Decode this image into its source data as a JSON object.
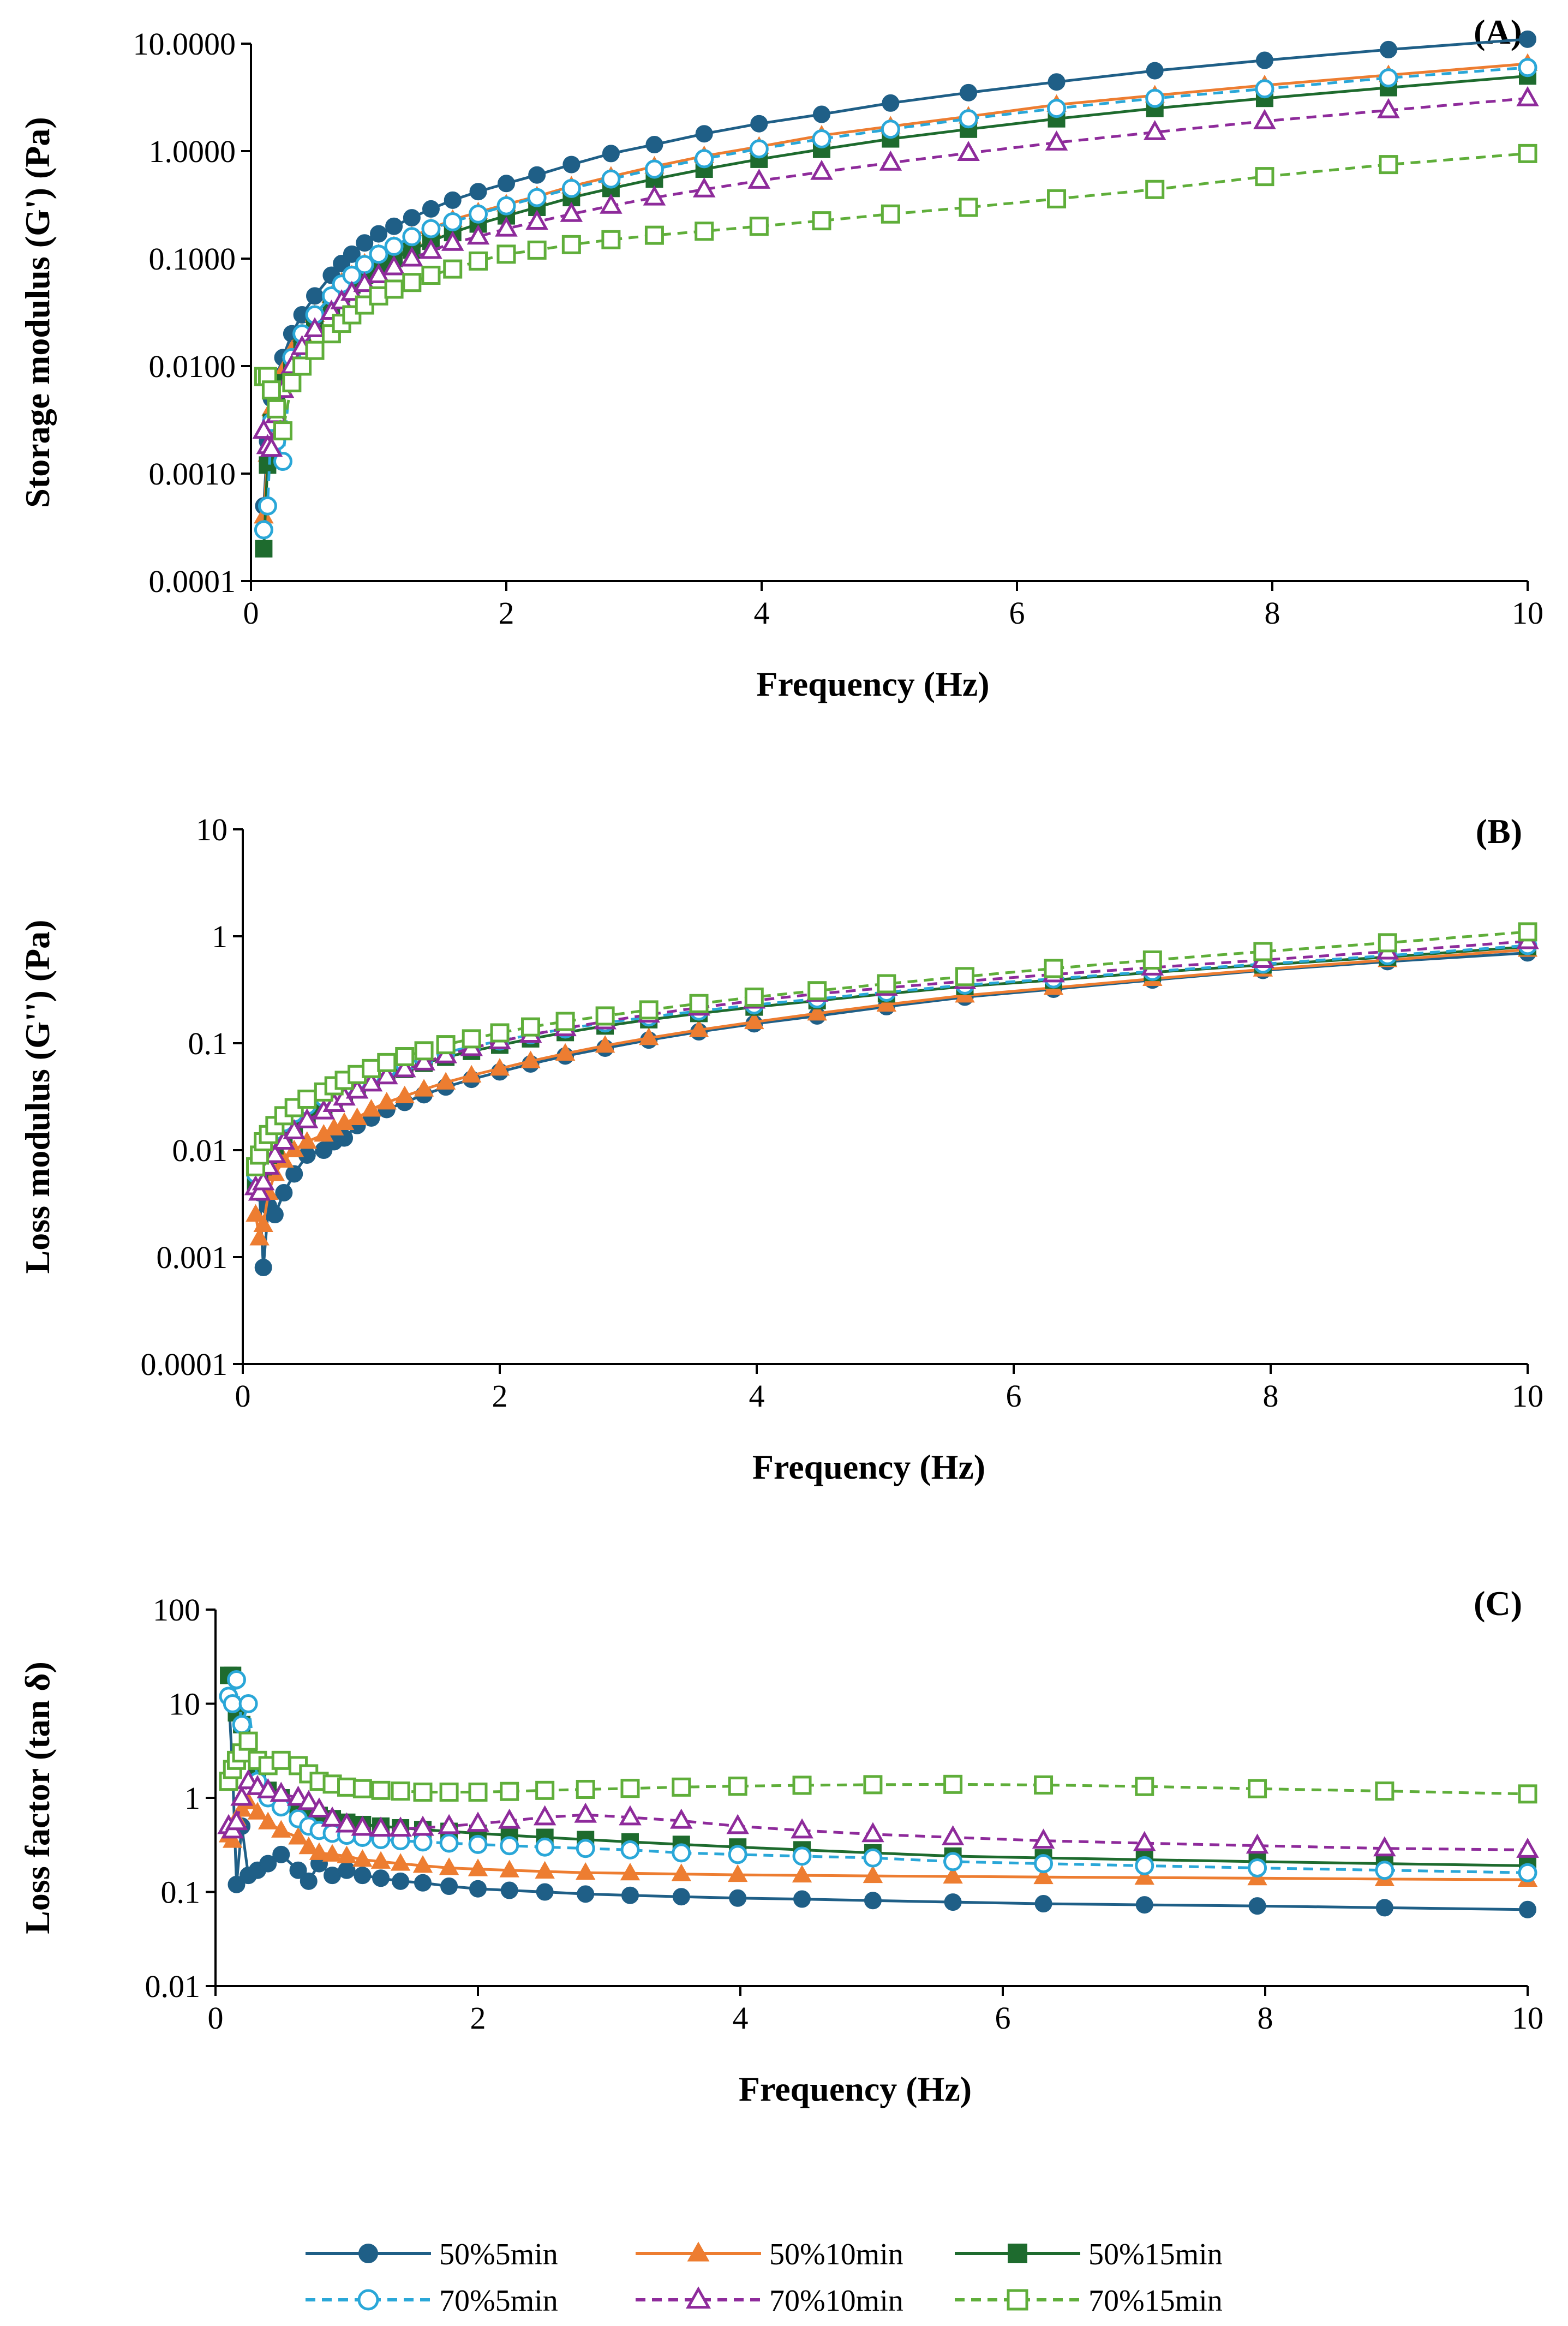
{
  "series_styles": [
    {
      "name": "50%5min",
      "color": "#1f5f87",
      "marker": "circle",
      "filled": true,
      "dashed": false
    },
    {
      "name": "50%10min",
      "color": "#ed7d31",
      "marker": "triangle",
      "filled": true,
      "dashed": false
    },
    {
      "name": "50%15min",
      "color": "#1e6b2e",
      "marker": "square",
      "filled": true,
      "dashed": false
    },
    {
      "name": "70%5min",
      "color": "#2aa7d8",
      "marker": "circle",
      "filled": false,
      "dashed": true
    },
    {
      "name": "70%10min",
      "color": "#8e2b9b",
      "marker": "triangle",
      "filled": false,
      "dashed": true
    },
    {
      "name": "70%15min",
      "color": "#5fae3a",
      "marker": "square",
      "filled": false,
      "dashed": true
    }
  ],
  "legend": {
    "entries": [
      "50%5min",
      "50%10min",
      "50%15min",
      "70%5min",
      "70%10min",
      "70%15min"
    ]
  },
  "chart_data": [
    {
      "type": "line",
      "panel": "(A)",
      "xlabel": "Frequency (Hz)",
      "ylabel": "Storage modulus (G') (Pa)",
      "yscale": "log",
      "xlim": [
        0,
        10
      ],
      "ylim": [
        0.0001,
        10
      ],
      "x_ticks": [
        "0",
        "2",
        "4",
        "6",
        "8",
        "10"
      ],
      "y_ticks": [
        "0.0001",
        "0.0010",
        "0.0100",
        "0.1000",
        "1.0000",
        "10.0000"
      ],
      "x": [
        0.1,
        0.13,
        0.16,
        0.2,
        0.25,
        0.32,
        0.4,
        0.5,
        0.63,
        0.71,
        0.79,
        0.89,
        1.0,
        1.12,
        1.26,
        1.41,
        1.58,
        1.78,
        2.0,
        2.24,
        2.51,
        2.82,
        3.16,
        3.55,
        3.98,
        4.47,
        5.01,
        5.62,
        6.31,
        7.08,
        7.94,
        8.91,
        10.0
      ],
      "series": [
        {
          "name": "50%5min",
          "values": [
            0.0005,
            0.002,
            0.005,
            0.008,
            0.012,
            0.02,
            0.03,
            0.045,
            0.07,
            0.09,
            0.11,
            0.14,
            0.17,
            0.2,
            0.24,
            0.29,
            0.35,
            0.42,
            0.5,
            0.6,
            0.75,
            0.95,
            1.15,
            1.45,
            1.8,
            2.2,
            2.8,
            3.5,
            4.4,
            5.6,
            7.0,
            8.8,
            11.0
          ]
        },
        {
          "name": "50%10min",
          "values": [
            0.0004,
            0.0015,
            0.004,
            0.006,
            0.009,
            0.014,
            0.02,
            0.03,
            0.045,
            0.06,
            0.07,
            0.09,
            0.11,
            0.13,
            0.16,
            0.19,
            0.23,
            0.27,
            0.32,
            0.38,
            0.47,
            0.58,
            0.72,
            0.9,
            1.1,
            1.4,
            1.7,
            2.1,
            2.7,
            3.3,
            4.1,
            5.1,
            6.5
          ]
        },
        {
          "name": "50%15min",
          "values": [
            0.0002,
            0.0012,
            0.003,
            0.005,
            0.007,
            0.011,
            0.017,
            0.025,
            0.037,
            0.047,
            0.057,
            0.07,
            0.085,
            0.1,
            0.12,
            0.145,
            0.175,
            0.21,
            0.25,
            0.3,
            0.37,
            0.45,
            0.55,
            0.68,
            0.84,
            1.04,
            1.3,
            1.6,
            2.0,
            2.5,
            3.1,
            3.9,
            5.0
          ]
        },
        {
          "name": "70%5min",
          "values": [
            0.0003,
            0.0005,
            0.003,
            0.002,
            0.0013,
            0.012,
            0.02,
            0.03,
            0.045,
            0.058,
            0.07,
            0.088,
            0.11,
            0.13,
            0.16,
            0.19,
            0.22,
            0.26,
            0.31,
            0.37,
            0.45,
            0.55,
            0.68,
            0.85,
            1.05,
            1.3,
            1.6,
            2.0,
            2.5,
            3.1,
            3.8,
            4.8,
            6.0
          ]
        },
        {
          "name": "70%10min",
          "values": [
            0.0025,
            0.0018,
            0.0017,
            0.0035,
            0.006,
            0.01,
            0.015,
            0.022,
            0.032,
            0.04,
            0.048,
            0.058,
            0.07,
            0.083,
            0.1,
            0.118,
            0.14,
            0.16,
            0.19,
            0.22,
            0.26,
            0.31,
            0.37,
            0.44,
            0.53,
            0.64,
            0.78,
            0.96,
            1.2,
            1.5,
            1.9,
            2.4,
            3.1
          ]
        },
        {
          "name": "70%15min",
          "values": [
            0.008,
            0.008,
            0.006,
            0.004,
            0.0025,
            0.007,
            0.01,
            0.014,
            0.02,
            0.025,
            0.03,
            0.037,
            0.045,
            0.052,
            0.06,
            0.07,
            0.08,
            0.095,
            0.11,
            0.12,
            0.135,
            0.15,
            0.165,
            0.18,
            0.2,
            0.225,
            0.26,
            0.3,
            0.36,
            0.44,
            0.58,
            0.75,
            0.95
          ]
        }
      ]
    },
    {
      "type": "line",
      "panel": "(B)",
      "xlabel": "Frequency (Hz)",
      "ylabel": "Loss modulus (G'') (Pa)",
      "yscale": "log",
      "xlim": [
        0,
        10
      ],
      "ylim": [
        0.0001,
        10
      ],
      "x_ticks": [
        "0",
        "2",
        "4",
        "6",
        "8",
        "10"
      ],
      "y_ticks": [
        "0.0001",
        "0.001",
        "0.01",
        "0.1",
        "1",
        "10"
      ],
      "x": [
        0.1,
        0.13,
        0.16,
        0.2,
        0.25,
        0.32,
        0.4,
        0.5,
        0.63,
        0.71,
        0.79,
        0.89,
        1.0,
        1.12,
        1.26,
        1.41,
        1.58,
        1.78,
        2.0,
        2.24,
        2.51,
        2.82,
        3.16,
        3.55,
        3.98,
        4.47,
        5.01,
        5.62,
        6.31,
        7.08,
        7.94,
        8.91,
        10.0
      ],
      "series": [
        {
          "name": "50%5min",
          "values": [
            0.006,
            0.004,
            0.0008,
            0.003,
            0.0025,
            0.004,
            0.006,
            0.009,
            0.01,
            0.012,
            0.013,
            0.017,
            0.02,
            0.024,
            0.028,
            0.033,
            0.039,
            0.046,
            0.054,
            0.064,
            0.076,
            0.09,
            0.107,
            0.128,
            0.152,
            0.18,
            0.22,
            0.27,
            0.32,
            0.39,
            0.48,
            0.58,
            0.7
          ]
        },
        {
          "name": "50%10min",
          "values": [
            0.0025,
            0.0015,
            0.002,
            0.004,
            0.006,
            0.008,
            0.01,
            0.012,
            0.014,
            0.016,
            0.018,
            0.02,
            0.024,
            0.028,
            0.032,
            0.037,
            0.043,
            0.05,
            0.058,
            0.068,
            0.08,
            0.095,
            0.112,
            0.133,
            0.158,
            0.19,
            0.23,
            0.28,
            0.33,
            0.4,
            0.49,
            0.6,
            0.75
          ]
        },
        {
          "name": "50%15min",
          "values": [
            0.005,
            0.006,
            0.007,
            0.009,
            0.011,
            0.014,
            0.017,
            0.021,
            0.025,
            0.029,
            0.033,
            0.038,
            0.044,
            0.05,
            0.057,
            0.065,
            0.074,
            0.084,
            0.096,
            0.11,
            0.126,
            0.145,
            0.166,
            0.19,
            0.218,
            0.25,
            0.29,
            0.34,
            0.39,
            0.46,
            0.54,
            0.64,
            0.8
          ]
        },
        {
          "name": "70%5min",
          "values": [
            0.006,
            0.008,
            0.01,
            0.012,
            0.015,
            0.018,
            0.022,
            0.026,
            0.031,
            0.035,
            0.039,
            0.044,
            0.05,
            0.057,
            0.064,
            0.072,
            0.082,
            0.093,
            0.105,
            0.12,
            0.136,
            0.155,
            0.176,
            0.2,
            0.228,
            0.26,
            0.3,
            0.35,
            0.4,
            0.47,
            0.55,
            0.66,
            0.82
          ]
        },
        {
          "name": "70%10min",
          "values": [
            0.0045,
            0.004,
            0.005,
            0.007,
            0.009,
            0.012,
            0.015,
            0.019,
            0.023,
            0.027,
            0.031,
            0.036,
            0.042,
            0.049,
            0.057,
            0.066,
            0.077,
            0.09,
            0.104,
            0.12,
            0.138,
            0.16,
            0.185,
            0.215,
            0.25,
            0.29,
            0.33,
            0.38,
            0.44,
            0.51,
            0.6,
            0.72,
            0.9
          ]
        },
        {
          "name": "70%15min",
          "values": [
            0.007,
            0.009,
            0.012,
            0.014,
            0.017,
            0.021,
            0.025,
            0.03,
            0.035,
            0.04,
            0.045,
            0.051,
            0.058,
            0.066,
            0.075,
            0.085,
            0.097,
            0.11,
            0.125,
            0.142,
            0.16,
            0.18,
            0.205,
            0.235,
            0.27,
            0.31,
            0.36,
            0.42,
            0.5,
            0.6,
            0.72,
            0.87,
            1.1
          ]
        }
      ]
    },
    {
      "type": "line",
      "panel": "(C)",
      "xlabel": "Frequency (Hz)",
      "ylabel": "Loss factor (tan δ)",
      "yscale": "log",
      "xlim": [
        0,
        10
      ],
      "ylim": [
        0.01,
        100
      ],
      "x_ticks": [
        "0",
        "2",
        "4",
        "6",
        "8",
        "10"
      ],
      "y_ticks": [
        "0.01",
        "0.1",
        "1",
        "10",
        "100"
      ],
      "x": [
        0.1,
        0.13,
        0.16,
        0.2,
        0.25,
        0.32,
        0.4,
        0.5,
        0.63,
        0.71,
        0.79,
        0.89,
        1.0,
        1.12,
        1.26,
        1.41,
        1.58,
        1.78,
        2.0,
        2.24,
        2.51,
        2.82,
        3.16,
        3.55,
        3.98,
        4.47,
        5.01,
        5.62,
        6.31,
        7.08,
        7.94,
        8.91,
        10.0
      ],
      "series": [
        {
          "name": "50%5min",
          "values": [
            12,
            2.0,
            0.12,
            0.5,
            0.15,
            0.17,
            0.2,
            0.25,
            0.17,
            0.13,
            0.2,
            0.15,
            0.17,
            0.15,
            0.14,
            0.13,
            0.125,
            0.115,
            0.108,
            0.104,
            0.1,
            0.095,
            0.092,
            0.089,
            0.086,
            0.084,
            0.081,
            0.078,
            0.075,
            0.073,
            0.071,
            0.068,
            0.065
          ]
        },
        {
          "name": "50%10min",
          "values": [
            0.4,
            0.35,
            0.6,
            0.75,
            0.9,
            0.7,
            0.55,
            0.45,
            0.38,
            0.3,
            0.26,
            0.25,
            0.24,
            0.22,
            0.21,
            0.2,
            0.19,
            0.18,
            0.175,
            0.17,
            0.165,
            0.16,
            0.158,
            0.155,
            0.152,
            0.15,
            0.148,
            0.146,
            0.144,
            0.142,
            0.14,
            0.137,
            0.135
          ]
        },
        {
          "name": "50%15min",
          "values": [
            20,
            20,
            8,
            6,
            3,
            1.8,
            1.2,
            1.0,
            0.8,
            0.7,
            0.65,
            0.6,
            0.55,
            0.52,
            0.5,
            0.48,
            0.46,
            0.44,
            0.42,
            0.4,
            0.38,
            0.36,
            0.34,
            0.32,
            0.3,
            0.28,
            0.26,
            0.24,
            0.23,
            0.22,
            0.21,
            0.2,
            0.19
          ]
        },
        {
          "name": "70%5min",
          "values": [
            12,
            10,
            18,
            6,
            10,
            1.5,
            1.0,
            0.8,
            0.6,
            0.5,
            0.45,
            0.42,
            0.4,
            0.38,
            0.36,
            0.35,
            0.34,
            0.33,
            0.32,
            0.31,
            0.3,
            0.29,
            0.28,
            0.26,
            0.25,
            0.24,
            0.23,
            0.21,
            0.2,
            0.19,
            0.18,
            0.17,
            0.16
          ]
        },
        {
          "name": "70%10min",
          "values": [
            0.5,
            0.45,
            0.55,
            1.0,
            1.5,
            1.3,
            1.2,
            1.1,
            1.0,
            0.9,
            0.75,
            0.6,
            0.52,
            0.48,
            0.47,
            0.47,
            0.48,
            0.5,
            0.53,
            0.57,
            0.62,
            0.66,
            0.62,
            0.57,
            0.5,
            0.45,
            0.41,
            0.38,
            0.35,
            0.33,
            0.31,
            0.29,
            0.28
          ]
        },
        {
          "name": "70%15min",
          "values": [
            1.5,
            2.0,
            2.5,
            3.0,
            4.0,
            2.5,
            2.2,
            2.5,
            2.2,
            1.8,
            1.5,
            1.4,
            1.3,
            1.25,
            1.2,
            1.18,
            1.15,
            1.15,
            1.15,
            1.17,
            1.2,
            1.23,
            1.26,
            1.3,
            1.33,
            1.36,
            1.38,
            1.39,
            1.37,
            1.32,
            1.25,
            1.18,
            1.1
          ]
        }
      ]
    }
  ]
}
